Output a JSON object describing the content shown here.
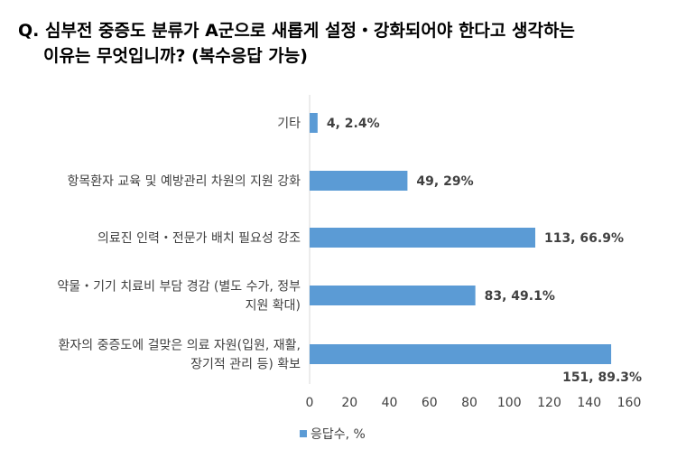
{
  "title": {
    "line1": "Q. 심부전 중증도 분류가 A군으로 새롭게 설정・강화되어야 한다고 생각하는",
    "line2": "이유는 무엇입니까? (복수응답 가능)"
  },
  "chart_data": {
    "type": "bar",
    "orientation": "horizontal",
    "categories": [
      [
        "기타"
      ],
      [
        "항목환자 교육 및 예방관리 차원의 지원 강화"
      ],
      [
        "의료진 인력・전문가 배치 필요성 강조"
      ],
      [
        "약물・기기 치료비 부담 경감 (별도 수가, 정부",
        "지원 확대)"
      ],
      [
        "환자의 중증도에 걸맞은 의료 자원(입원, 재활,",
        "장기적 관리 등) 확보"
      ]
    ],
    "values": [
      4,
      49,
      113,
      83,
      151
    ],
    "data_labels": [
      "4, 2.4%",
      "49, 29%",
      "113, 66.9%",
      "83, 49.1%",
      "151, 89.3%"
    ],
    "xlim": [
      0,
      160
    ],
    "xticks": [
      0,
      20,
      40,
      60,
      80,
      100,
      120,
      140,
      160
    ],
    "grid": false,
    "legend": {
      "label": "응답수, %",
      "placement": "bottom"
    },
    "color": "#5B9BD5"
  }
}
